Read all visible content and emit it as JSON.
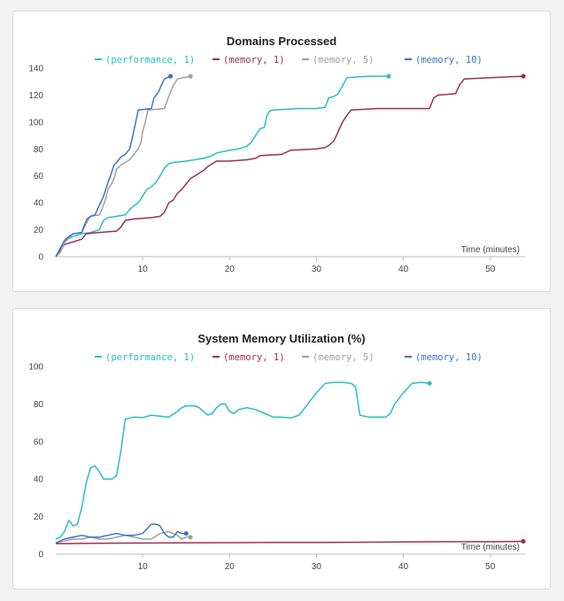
{
  "charts": [
    {
      "type": "line",
      "title": "Domains Processed",
      "xlabel": "Time (minutes)",
      "ylabel": "",
      "xlim": [
        0,
        54
      ],
      "ylim": [
        0,
        140
      ],
      "xticks": [
        10,
        20,
        30,
        40,
        50
      ],
      "yticks": [
        0,
        20,
        40,
        60,
        80,
        100,
        120,
        140
      ],
      "legend_position": "top",
      "series": [
        {
          "name": "(performance, 1)",
          "color": "#2bbcc9",
          "points": [
            [
              0,
              0
            ],
            [
              0.5,
              5
            ],
            [
              1,
              12
            ],
            [
              2,
              15
            ],
            [
              3,
              17
            ],
            [
              4,
              18
            ],
            [
              5,
              20
            ],
            [
              5.5,
              27
            ],
            [
              6,
              29
            ],
            [
              7,
              30
            ],
            [
              8,
              31
            ],
            [
              8.5,
              35
            ],
            [
              9,
              38
            ],
            [
              9.5,
              40
            ],
            [
              10,
              45
            ],
            [
              10.5,
              50
            ],
            [
              11,
              52
            ],
            [
              11.5,
              55
            ],
            [
              12,
              60
            ],
            [
              12.5,
              66
            ],
            [
              13,
              69
            ],
            [
              13.5,
              70
            ],
            [
              15,
              71
            ],
            [
              16,
              72
            ],
            [
              17,
              73
            ],
            [
              18,
              75
            ],
            [
              18.5,
              77
            ],
            [
              20,
              79
            ],
            [
              21,
              80
            ],
            [
              22,
              82
            ],
            [
              22.5,
              85
            ],
            [
              23,
              90
            ],
            [
              23.5,
              95
            ],
            [
              24,
              96
            ],
            [
              24.3,
              105
            ],
            [
              24.6,
              108
            ],
            [
              25,
              109
            ],
            [
              28,
              110
            ],
            [
              30,
              110
            ],
            [
              31,
              111
            ],
            [
              31.4,
              118
            ],
            [
              32,
              119
            ],
            [
              32.5,
              121
            ],
            [
              33,
              127
            ],
            [
              33.5,
              133
            ],
            [
              36,
              134
            ],
            [
              38.3,
              134
            ]
          ]
        },
        {
          "name": "(memory, 1)",
          "color": "#9b2d5a",
          "points": [
            [
              0,
              0
            ],
            [
              0.5,
              5
            ],
            [
              1,
              9
            ],
            [
              2,
              11
            ],
            [
              3,
              13
            ],
            [
              3.5,
              17
            ],
            [
              5,
              18
            ],
            [
              7,
              19
            ],
            [
              7.5,
              22
            ],
            [
              8,
              27
            ],
            [
              9,
              28
            ],
            [
              11,
              29
            ],
            [
              12,
              30
            ],
            [
              12.5,
              33
            ],
            [
              13,
              40
            ],
            [
              13.5,
              42
            ],
            [
              14,
              47
            ],
            [
              14.5,
              50
            ],
            [
              15,
              54
            ],
            [
              15.5,
              58
            ],
            [
              16,
              60
            ],
            [
              17,
              64
            ],
            [
              17.5,
              67
            ],
            [
              18,
              69
            ],
            [
              18.5,
              71
            ],
            [
              20,
              71
            ],
            [
              22,
              72
            ],
            [
              23,
              73
            ],
            [
              23.5,
              75
            ],
            [
              26,
              76
            ],
            [
              27,
              79
            ],
            [
              30,
              80
            ],
            [
              31,
              81
            ],
            [
              31.5,
              83
            ],
            [
              32,
              86
            ],
            [
              32.3,
              90
            ],
            [
              32.5,
              93
            ],
            [
              33,
              100
            ],
            [
              33.5,
              105
            ],
            [
              34,
              109
            ],
            [
              37,
              110
            ],
            [
              43,
              110
            ],
            [
              43.5,
              118
            ],
            [
              44,
              120
            ],
            [
              46,
              121
            ],
            [
              46.5,
              128
            ],
            [
              47,
              132
            ],
            [
              50,
              133
            ],
            [
              53.8,
              134
            ]
          ]
        },
        {
          "name": "(memory, 5)",
          "color": "#a0a0a0",
          "points": [
            [
              0,
              0
            ],
            [
              0.5,
              3
            ],
            [
              1,
              10
            ],
            [
              1.5,
              14
            ],
            [
              2,
              17
            ],
            [
              3,
              18
            ],
            [
              3.3,
              22
            ],
            [
              3.7,
              27
            ],
            [
              4,
              30
            ],
            [
              5,
              31
            ],
            [
              5.3,
              35
            ],
            [
              5.7,
              42
            ],
            [
              6,
              50
            ],
            [
              6.5,
              55
            ],
            [
              6.8,
              60
            ],
            [
              7,
              65
            ],
            [
              7.5,
              68
            ],
            [
              8,
              70
            ],
            [
              8.5,
              72
            ],
            [
              9,
              76
            ],
            [
              9.5,
              80
            ],
            [
              9.8,
              85
            ],
            [
              10,
              93
            ],
            [
              10.3,
              100
            ],
            [
              10.6,
              109
            ],
            [
              12.5,
              110
            ],
            [
              13,
              119
            ],
            [
              13.5,
              127
            ],
            [
              14,
              132
            ],
            [
              15.5,
              134
            ]
          ]
        },
        {
          "name": "(memory, 10)",
          "color": "#3d74c4",
          "points": [
            [
              0,
              0
            ],
            [
              0.5,
              6
            ],
            [
              1,
              12
            ],
            [
              1.5,
              15
            ],
            [
              2,
              17
            ],
            [
              3,
              18
            ],
            [
              3.2,
              22
            ],
            [
              3.6,
              28
            ],
            [
              4,
              30
            ],
            [
              4.5,
              31
            ],
            [
              5,
              38
            ],
            [
              5.5,
              45
            ],
            [
              6,
              55
            ],
            [
              6.3,
              60
            ],
            [
              6.7,
              68
            ],
            [
              7,
              70
            ],
            [
              7.5,
              74
            ],
            [
              8,
              76
            ],
            [
              8.5,
              80
            ],
            [
              8.8,
              88
            ],
            [
              9.2,
              100
            ],
            [
              9.5,
              109
            ],
            [
              11,
              110
            ],
            [
              11.3,
              118
            ],
            [
              11.8,
              122
            ],
            [
              12.2,
              128
            ],
            [
              12.5,
              132
            ],
            [
              13.2,
              134
            ]
          ]
        }
      ]
    },
    {
      "type": "line",
      "title": "System Memory Utilization (%)",
      "xlabel": "Time (minutes)",
      "ylabel": "",
      "xlim": [
        0,
        54
      ],
      "ylim": [
        0,
        100
      ],
      "xticks": [
        10,
        20,
        30,
        40,
        50
      ],
      "yticks": [
        0,
        20,
        40,
        60,
        80,
        100
      ],
      "legend_position": "top",
      "series": [
        {
          "name": "(performance, 1)",
          "color": "#2bbcc9",
          "points": [
            [
              0,
              8
            ],
            [
              0.5,
              9
            ],
            [
              1,
              12
            ],
            [
              1.5,
              18
            ],
            [
              2,
              15
            ],
            [
              2.5,
              16
            ],
            [
              3,
              25
            ],
            [
              3.5,
              38
            ],
            [
              4,
              46
            ],
            [
              4.5,
              47
            ],
            [
              5,
              44
            ],
            [
              5.5,
              40
            ],
            [
              6,
              40
            ],
            [
              6.5,
              40
            ],
            [
              7,
              42
            ],
            [
              7.5,
              55
            ],
            [
              8,
              72
            ],
            [
              8.5,
              72.5
            ],
            [
              9,
              73
            ],
            [
              10,
              72.8
            ],
            [
              11,
              74
            ],
            [
              12,
              73.5
            ],
            [
              13,
              73
            ],
            [
              14,
              76
            ],
            [
              14.5,
              78
            ],
            [
              15,
              79
            ],
            [
              16,
              79
            ],
            [
              16.5,
              78
            ],
            [
              17,
              76
            ],
            [
              17.5,
              74
            ],
            [
              18,
              75
            ],
            [
              18.5,
              78
            ],
            [
              19,
              80
            ],
            [
              19.5,
              80
            ],
            [
              20,
              76
            ],
            [
              20.5,
              75
            ],
            [
              21,
              77
            ],
            [
              22,
              78
            ],
            [
              23,
              77
            ],
            [
              24,
              75
            ],
            [
              25,
              73
            ],
            [
              26,
              73
            ],
            [
              27,
              72.5
            ],
            [
              28,
              74
            ],
            [
              29,
              80
            ],
            [
              30,
              86
            ],
            [
              31,
              91
            ],
            [
              32,
              91.5
            ],
            [
              33,
              91.5
            ],
            [
              34,
              91
            ],
            [
              34.5,
              89
            ],
            [
              35,
              74
            ],
            [
              36,
              73
            ],
            [
              37,
              73
            ],
            [
              38,
              73
            ],
            [
              38.5,
              75
            ],
            [
              39,
              80
            ],
            [
              40,
              86
            ],
            [
              41,
              91
            ],
            [
              42,
              91.5
            ],
            [
              43,
              91
            ]
          ]
        },
        {
          "name": "(memory, 1)",
          "color": "#9b2d5a",
          "points": [
            [
              0,
              5.5
            ],
            [
              5,
              5.8
            ],
            [
              10,
              5.9
            ],
            [
              15,
              6
            ],
            [
              20,
              6.1
            ],
            [
              25,
              6.2
            ],
            [
              30,
              6.2
            ],
            [
              35,
              6.3
            ],
            [
              40,
              6.5
            ],
            [
              45,
              6.6
            ],
            [
              50,
              6.6
            ],
            [
              53.8,
              6.8
            ]
          ]
        },
        {
          "name": "(memory, 5)",
          "color": "#a0a0a0",
          "points": [
            [
              0,
              6
            ],
            [
              1,
              7
            ],
            [
              2,
              8
            ],
            [
              3,
              8
            ],
            [
              4,
              9
            ],
            [
              5,
              8
            ],
            [
              6,
              8
            ],
            [
              7,
              9
            ],
            [
              8,
              10
            ],
            [
              9,
              9
            ],
            [
              10,
              8
            ],
            [
              11,
              8
            ],
            [
              12,
              11
            ],
            [
              13,
              12
            ],
            [
              14,
              10
            ],
            [
              14.5,
              8
            ],
            [
              15,
              9
            ],
            [
              15.5,
              9
            ]
          ]
        },
        {
          "name": "(memory, 10)",
          "color": "#3d74c4",
          "points": [
            [
              0,
              6
            ],
            [
              1,
              8
            ],
            [
              2,
              9
            ],
            [
              3,
              10
            ],
            [
              4,
              9
            ],
            [
              5,
              9
            ],
            [
              6,
              10
            ],
            [
              7,
              11
            ],
            [
              8,
              10
            ],
            [
              9,
              10
            ],
            [
              10,
              11
            ],
            [
              11,
              16
            ],
            [
              11.5,
              16
            ],
            [
              12,
              15
            ],
            [
              12.5,
              11
            ],
            [
              13,
              9
            ],
            [
              13.5,
              9
            ],
            [
              14,
              12
            ],
            [
              14.5,
              11
            ],
            [
              15,
              11
            ]
          ]
        }
      ]
    }
  ]
}
